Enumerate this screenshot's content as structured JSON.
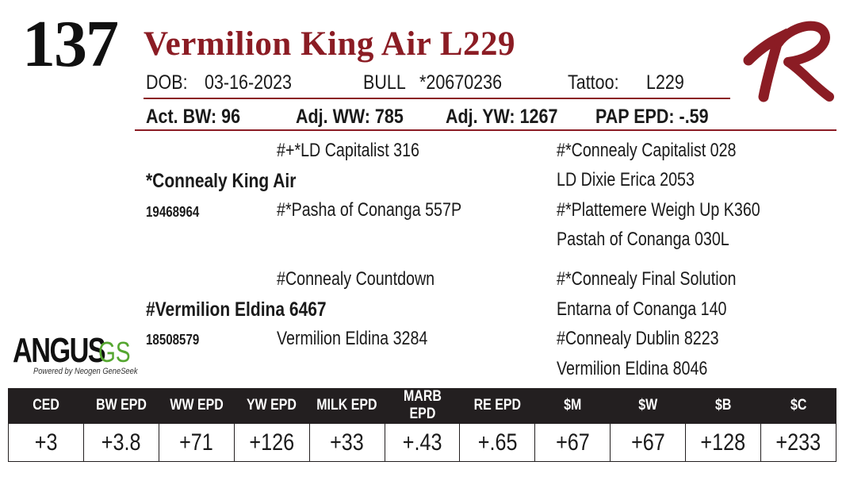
{
  "lot_number": "137",
  "animal_name": "Vermilion King Air L229",
  "details": {
    "dob_label": "DOB:",
    "dob": "03-16-2023",
    "sex": "BULL",
    "registration": "*20670236",
    "tattoo_label": "Tattoo:",
    "tattoo": "L229"
  },
  "performance": {
    "act_bw": "Act. BW: 96",
    "adj_ww": "Adj. WW: 785",
    "adj_yw": "Adj. YW: 1267",
    "pap_epd": "PAP EPD: -.59"
  },
  "pedigree": {
    "sire": {
      "name": "*Connealy King Air",
      "reg": "19468964",
      "sire": "#+*LD Capitalist 316",
      "dam": "#*Pasha of Conanga 557P",
      "sire_sire": "#*Connealy Capitalist 028",
      "sire_dam": "LD Dixie Erica 2053",
      "dam_sire": "#*Plattemere Weigh Up K360",
      "dam_dam": "Pastah of Conanga 030L"
    },
    "dam": {
      "name": "#Vermilion Eldina 6467",
      "reg": "18508579",
      "sire": "#Connealy Countdown",
      "dam": "Vermilion Eldina 3284",
      "sire_sire": "#*Connealy Final Solution",
      "sire_dam": "Entarna of Conanga 140",
      "dam_sire": "#Connealy Dublin 8223",
      "dam_dam": "Vermilion Eldina 8046"
    }
  },
  "logo": {
    "angus": "ANGUS",
    "gs": "GS",
    "powered": "Powered by Neogen GeneSeek"
  },
  "colors": {
    "accent": "#8b1c24",
    "header_bg": "#231f20",
    "gs_green": "#55a630"
  },
  "epd_table": {
    "headers": [
      "CED",
      "BW EPD",
      "WW EPD",
      "YW EPD",
      "MILK EPD",
      "MARB EPD",
      "RE EPD",
      "$M",
      "$W",
      "$B",
      "$C"
    ],
    "values": [
      "+3",
      "+3.8",
      "+71",
      "+126",
      "+33",
      "+.43",
      "+.65",
      "+67",
      "+67",
      "+128",
      "+233"
    ]
  }
}
